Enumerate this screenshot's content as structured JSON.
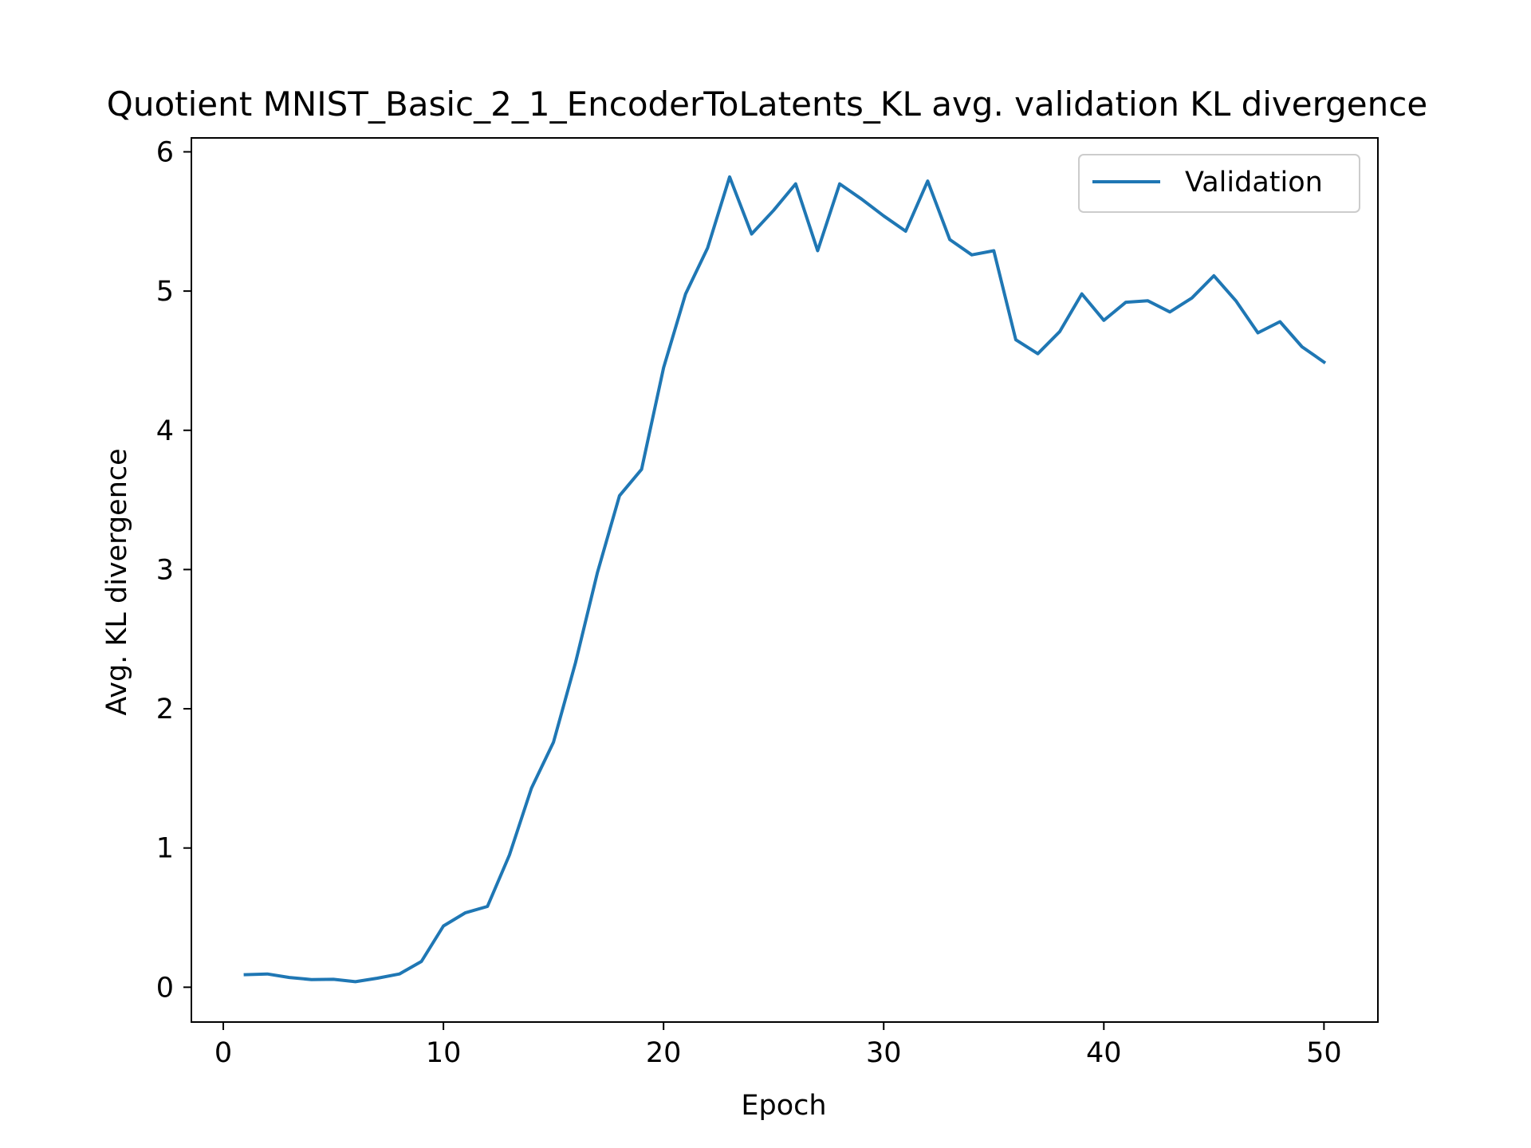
{
  "chart_data": {
    "type": "line",
    "title": "Quotient MNIST_Basic_2_1_EncoderToLatents_KL avg. validation KL divergence",
    "xlabel": "Epoch",
    "ylabel": "Avg. KL divergence",
    "xlim": [
      -1.45,
      52.45
    ],
    "ylim": [
      -0.25,
      6.1
    ],
    "xticks": [
      0,
      10,
      20,
      30,
      40,
      50
    ],
    "yticks": [
      0,
      1,
      2,
      3,
      4,
      5,
      6
    ],
    "grid": false,
    "legend_position": "top-right",
    "colors": {
      "series": "#1f77b4"
    },
    "series": [
      {
        "name": "Validation",
        "x": [
          1,
          2,
          3,
          4,
          5,
          6,
          7,
          8,
          9,
          10,
          11,
          12,
          13,
          14,
          15,
          16,
          17,
          18,
          19,
          20,
          21,
          22,
          23,
          24,
          25,
          26,
          27,
          28,
          29,
          30,
          31,
          32,
          33,
          34,
          35,
          36,
          37,
          38,
          39,
          40,
          41,
          42,
          43,
          44,
          45,
          46,
          47,
          48,
          49,
          50
        ],
        "values": [
          0.09,
          0.095,
          0.07,
          0.055,
          0.057,
          0.04,
          0.065,
          0.095,
          0.185,
          0.44,
          0.535,
          0.58,
          0.95,
          1.43,
          1.76,
          2.33,
          2.98,
          3.53,
          3.72,
          4.45,
          4.98,
          5.31,
          5.82,
          5.41,
          5.58,
          5.77,
          5.29,
          5.77,
          5.66,
          5.54,
          5.43,
          5.79,
          5.37,
          5.26,
          5.29,
          4.65,
          4.55,
          4.71,
          4.98,
          4.79,
          4.92,
          4.93,
          4.85,
          4.95,
          5.11,
          4.93,
          4.7,
          4.78,
          4.6,
          4.49
        ]
      }
    ]
  }
}
